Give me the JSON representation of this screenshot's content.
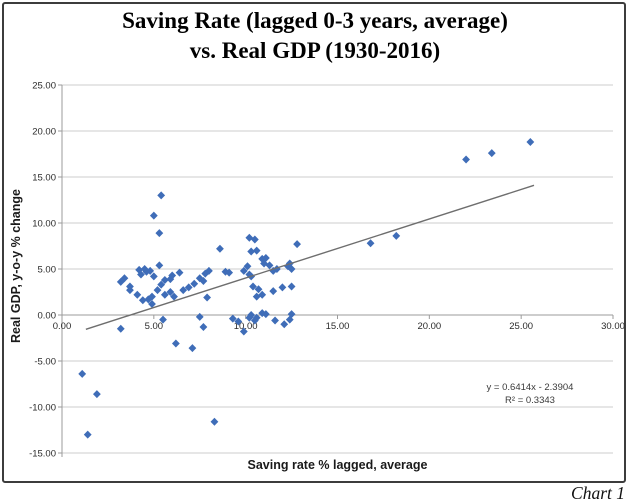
{
  "caption": "Chart 1",
  "chart_data": {
    "type": "scatter",
    "title": "Saving Rate (lagged 0-3 years, average) vs. Real GDP (1930-2016)",
    "title_lines": [
      "Saving Rate (lagged 0-3 years, average)",
      "vs. Real GDP (1930-2016)"
    ],
    "xlabel": "Saving rate % lagged, average",
    "ylabel": "Real GDP, y-o-y % change",
    "xlim": [
      0,
      30
    ],
    "ylim": [
      -15,
      25
    ],
    "grid": true,
    "marker": "diamond",
    "colors": {
      "marker": "#3f6db8",
      "grid": "#cccccc",
      "axis": "#9b9b9b",
      "trend": "#6e6e6e",
      "tick_text": "#2b2b2b"
    },
    "xticks": [
      {
        "v": 0,
        "label": "0.00"
      },
      {
        "v": 5,
        "label": "5.00"
      },
      {
        "v": 10,
        "label": "10.00"
      },
      {
        "v": 15,
        "label": "15.00"
      },
      {
        "v": 20,
        "label": "20.00"
      },
      {
        "v": 25,
        "label": "25.00"
      },
      {
        "v": 30,
        "label": "30.00"
      }
    ],
    "yticks": [
      {
        "v": 25,
        "label": "25.00"
      },
      {
        "v": 20,
        "label": "20.00"
      },
      {
        "v": 15,
        "label": "15.00"
      },
      {
        "v": 10,
        "label": "10.00"
      },
      {
        "v": 5,
        "label": "5.00"
      },
      {
        "v": 0,
        "label": "0.00"
      },
      {
        "v": -5,
        "label": "-5.00"
      },
      {
        "v": -10,
        "label": "-10.00"
      },
      {
        "v": -15,
        "label": "-15.00"
      }
    ],
    "points": [
      [
        1.1,
        -6.4
      ],
      [
        1.9,
        -8.6
      ],
      [
        1.4,
        -13.0
      ],
      [
        3.2,
        -1.5
      ],
      [
        3.2,
        3.6
      ],
      [
        3.4,
        4.0
      ],
      [
        3.7,
        3.1
      ],
      [
        3.7,
        2.7
      ],
      [
        4.1,
        2.2
      ],
      [
        4.2,
        4.9
      ],
      [
        4.3,
        4.4
      ],
      [
        4.4,
        1.6
      ],
      [
        4.5,
        5.0
      ],
      [
        4.6,
        4.7
      ],
      [
        4.7,
        1.7
      ],
      [
        4.8,
        4.8
      ],
      [
        4.9,
        1.2
      ],
      [
        4.9,
        2.0
      ],
      [
        5.0,
        4.2
      ],
      [
        5.0,
        10.8
      ],
      [
        5.2,
        2.7
      ],
      [
        5.3,
        5.4
      ],
      [
        5.3,
        8.9
      ],
      [
        5.4,
        13.0
      ],
      [
        5.4,
        3.3
      ],
      [
        5.5,
        -0.5
      ],
      [
        5.6,
        3.8
      ],
      [
        5.6,
        2.2
      ],
      [
        5.9,
        3.9
      ],
      [
        5.9,
        2.5
      ],
      [
        6.0,
        4.3
      ],
      [
        6.1,
        2.0
      ],
      [
        6.2,
        -3.1
      ],
      [
        6.4,
        4.6
      ],
      [
        6.6,
        2.7
      ],
      [
        6.9,
        3.0
      ],
      [
        7.1,
        -3.6
      ],
      [
        7.2,
        3.4
      ],
      [
        7.5,
        -0.2
      ],
      [
        7.5,
        4.0
      ],
      [
        7.7,
        -1.3
      ],
      [
        7.7,
        3.7
      ],
      [
        7.8,
        4.5
      ],
      [
        7.9,
        1.9
      ],
      [
        8.0,
        4.8
      ],
      [
        8.3,
        -11.6
      ],
      [
        8.6,
        7.2
      ],
      [
        8.9,
        4.7
      ],
      [
        9.1,
        4.6
      ],
      [
        9.3,
        -0.4
      ],
      [
        9.6,
        -0.7
      ],
      [
        9.9,
        -1.8
      ],
      [
        9.9,
        4.8
      ],
      [
        10.1,
        5.3
      ],
      [
        10.2,
        8.4
      ],
      [
        10.2,
        -0.3
      ],
      [
        10.2,
        4.4
      ],
      [
        10.3,
        0.0
      ],
      [
        10.3,
        6.9
      ],
      [
        10.3,
        4.2
      ],
      [
        10.4,
        3.1
      ],
      [
        10.5,
        8.2
      ],
      [
        10.5,
        -0.6
      ],
      [
        10.6,
        -0.3
      ],
      [
        10.6,
        7.0
      ],
      [
        10.6,
        2.0
      ],
      [
        10.7,
        2.8
      ],
      [
        10.9,
        6.1
      ],
      [
        10.9,
        2.2
      ],
      [
        10.9,
        0.2
      ],
      [
        11.0,
        5.6
      ],
      [
        11.1,
        6.2
      ],
      [
        11.1,
        0.1
      ],
      [
        11.3,
        5.4
      ],
      [
        11.5,
        4.8
      ],
      [
        11.5,
        2.6
      ],
      [
        11.6,
        -0.6
      ],
      [
        11.7,
        5.0
      ],
      [
        12.0,
        3.0
      ],
      [
        12.1,
        -1.0
      ],
      [
        12.3,
        5.3
      ],
      [
        12.4,
        -0.5
      ],
      [
        12.4,
        5.6
      ],
      [
        12.5,
        5.0
      ],
      [
        12.5,
        3.1
      ],
      [
        12.5,
        0.1
      ],
      [
        12.8,
        7.7
      ],
      [
        16.8,
        7.8
      ],
      [
        18.2,
        8.6
      ],
      [
        22.0,
        16.9
      ],
      [
        23.4,
        17.6
      ],
      [
        25.5,
        18.8
      ]
    ],
    "trendline": {
      "equation": "y = 0.6414x - 2.3904",
      "r_squared": "R² = 0.3343",
      "slope": 0.6414,
      "intercept": -2.3904,
      "x_range": [
        1.3,
        25.7
      ]
    },
    "legend": null
  }
}
